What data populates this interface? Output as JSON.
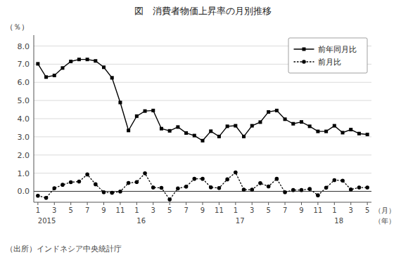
{
  "chart_data": {
    "type": "line",
    "title": "図　消費者物価上昇率の月別推移",
    "ylabel": "（％）",
    "xlabel": "（月）",
    "x_group_label": "（年）",
    "source": "（出所）インドネシア中央統計庁",
    "categories": [
      "1",
      null,
      "3",
      null,
      "5",
      null,
      "7",
      null,
      "9",
      null,
      "11",
      null,
      "1",
      null,
      "3",
      null,
      "5",
      null,
      "7",
      null,
      "9",
      null,
      "11",
      null,
      "1",
      null,
      "3",
      null,
      "5",
      null,
      "7",
      null,
      "9",
      null,
      "11",
      null,
      "1",
      null,
      "3",
      null,
      "5"
    ],
    "annotations": [
      {
        "text": "2015",
        "category": 0
      },
      {
        "text": "16",
        "category": 12
      },
      {
        "text": "17",
        "category": 24
      },
      {
        "text": "18",
        "category": 36
      }
    ],
    "series": [
      {
        "name": "前年同月比",
        "color": "#000000",
        "marker": "square",
        "line_style": "solid",
        "values": [
          7.02,
          6.29,
          6.38,
          6.79,
          7.15,
          7.26,
          7.26,
          7.18,
          6.83,
          6.25,
          4.89,
          3.35,
          4.14,
          4.42,
          4.45,
          3.45,
          3.33,
          3.54,
          3.21,
          3.07,
          2.79,
          3.31,
          3.02,
          3.58,
          3.61,
          3.02,
          3.61,
          3.81,
          4.37,
          4.45,
          3.97,
          3.72,
          3.82,
          3.58,
          3.3,
          3.3,
          3.61,
          3.23,
          3.4,
          3.18,
          3.13
        ]
      },
      {
        "name": "前月比",
        "color": "#000000",
        "marker": "circle",
        "line_style": "dotted",
        "values": [
          -0.24,
          -0.36,
          0.17,
          0.36,
          0.5,
          0.54,
          0.93,
          0.39,
          -0.05,
          -0.08,
          -0.01,
          0.46,
          0.51,
          0.99,
          0.21,
          0.19,
          -0.45,
          0.16,
          0.26,
          0.69,
          0.69,
          0.22,
          0.18,
          0.66,
          1.04,
          0.09,
          0.09,
          0.45,
          0.27,
          0.69,
          -0.05,
          0.07,
          0.07,
          0.13,
          -0.22,
          0.2,
          0.62,
          0.59,
          0.1,
          0.21,
          0.21
        ]
      }
    ],
    "ylim": [
      -0.6,
      8.6
    ],
    "yticks": [
      {
        "value": 0.0,
        "label": "0.0"
      },
      {
        "value": 1.0,
        "label": "1.0"
      },
      {
        "value": 2.0,
        "label": "2.0"
      },
      {
        "value": 3.0,
        "label": "3.0"
      },
      {
        "value": 4.0,
        "label": "4.0"
      },
      {
        "value": 5.0,
        "label": "5.0"
      },
      {
        "value": 6.0,
        "label": "6.0"
      },
      {
        "value": 7.0,
        "label": "7.0"
      },
      {
        "value": 8.0,
        "label": "8.0"
      }
    ],
    "grid": true,
    "legend": "upper right"
  }
}
